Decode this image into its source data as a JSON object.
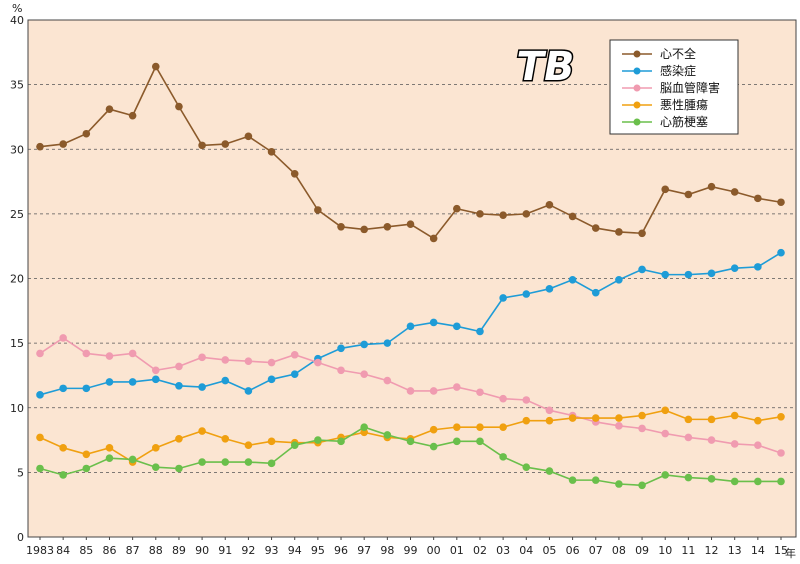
{
  "chart_data": {
    "type": "line",
    "y_unit": "%",
    "x_unit": "年",
    "categories": [
      "1983",
      "84",
      "85",
      "86",
      "87",
      "88",
      "89",
      "90",
      "91",
      "92",
      "93",
      "94",
      "95",
      "96",
      "97",
      "98",
      "99",
      "00",
      "01",
      "02",
      "03",
      "04",
      "05",
      "06",
      "07",
      "08",
      "09",
      "10",
      "11",
      "12",
      "13",
      "14",
      "15"
    ],
    "ylim": [
      0,
      40
    ],
    "yticks": [
      0,
      5,
      10,
      15,
      20,
      25,
      30,
      35,
      40
    ],
    "grid": true,
    "legend_position": "top-right",
    "logo_text": "TB",
    "series": [
      {
        "name": "心不全",
        "color": "#8b5a2b",
        "values": [
          30.2,
          30.4,
          31.2,
          33.1,
          32.6,
          36.4,
          33.3,
          30.3,
          30.4,
          31.0,
          29.8,
          28.1,
          25.3,
          24.0,
          23.8,
          24.0,
          24.2,
          23.1,
          25.4,
          25.0,
          24.9,
          25.0,
          25.7,
          24.8,
          23.9,
          23.6,
          23.5,
          26.9,
          26.5,
          27.1,
          26.7,
          26.2,
          25.9
        ]
      },
      {
        "name": "感染症",
        "color": "#1e9cd7",
        "values": [
          11.0,
          11.5,
          11.5,
          12.0,
          12.0,
          12.2,
          11.7,
          11.6,
          12.1,
          11.3,
          12.2,
          12.6,
          13.8,
          14.6,
          14.9,
          15.0,
          16.3,
          16.6,
          16.3,
          15.9,
          18.5,
          18.8,
          19.2,
          19.9,
          18.9,
          19.9,
          20.7,
          20.3,
          20.3,
          20.4,
          20.8,
          20.9,
          22.0
        ]
      },
      {
        "name": "脳血管障害",
        "color": "#f09bb0",
        "values": [
          14.2,
          15.4,
          14.2,
          14.0,
          14.2,
          12.9,
          13.2,
          13.9,
          13.7,
          13.6,
          13.5,
          14.1,
          13.5,
          12.9,
          12.6,
          12.1,
          11.3,
          11.3,
          11.6,
          11.2,
          10.7,
          10.6,
          9.8,
          9.4,
          8.9,
          8.6,
          8.4,
          8.0,
          7.7,
          7.5,
          7.2,
          7.1,
          6.5
        ]
      },
      {
        "name": "悪性腫瘍",
        "color": "#f0a010",
        "values": [
          7.7,
          6.9,
          6.4,
          6.9,
          5.8,
          6.9,
          7.6,
          8.2,
          7.6,
          7.1,
          7.4,
          7.3,
          7.3,
          7.7,
          8.1,
          7.7,
          7.6,
          8.3,
          8.5,
          8.5,
          8.5,
          9.0,
          9.0,
          9.2,
          9.2,
          9.2,
          9.4,
          9.8,
          9.1,
          9.1,
          9.4,
          9.0,
          9.3
        ]
      },
      {
        "name": "心筋梗塞",
        "color": "#6abf4b",
        "values": [
          5.3,
          4.8,
          5.3,
          6.1,
          6.0,
          5.4,
          5.3,
          5.8,
          5.8,
          5.8,
          5.7,
          7.1,
          7.5,
          7.4,
          8.5,
          7.9,
          7.4,
          7.0,
          7.4,
          7.4,
          6.2,
          5.4,
          5.1,
          4.4,
          4.4,
          4.1,
          4.0,
          4.8,
          4.6,
          4.5,
          4.3,
          4.3,
          4.3
        ]
      }
    ]
  }
}
